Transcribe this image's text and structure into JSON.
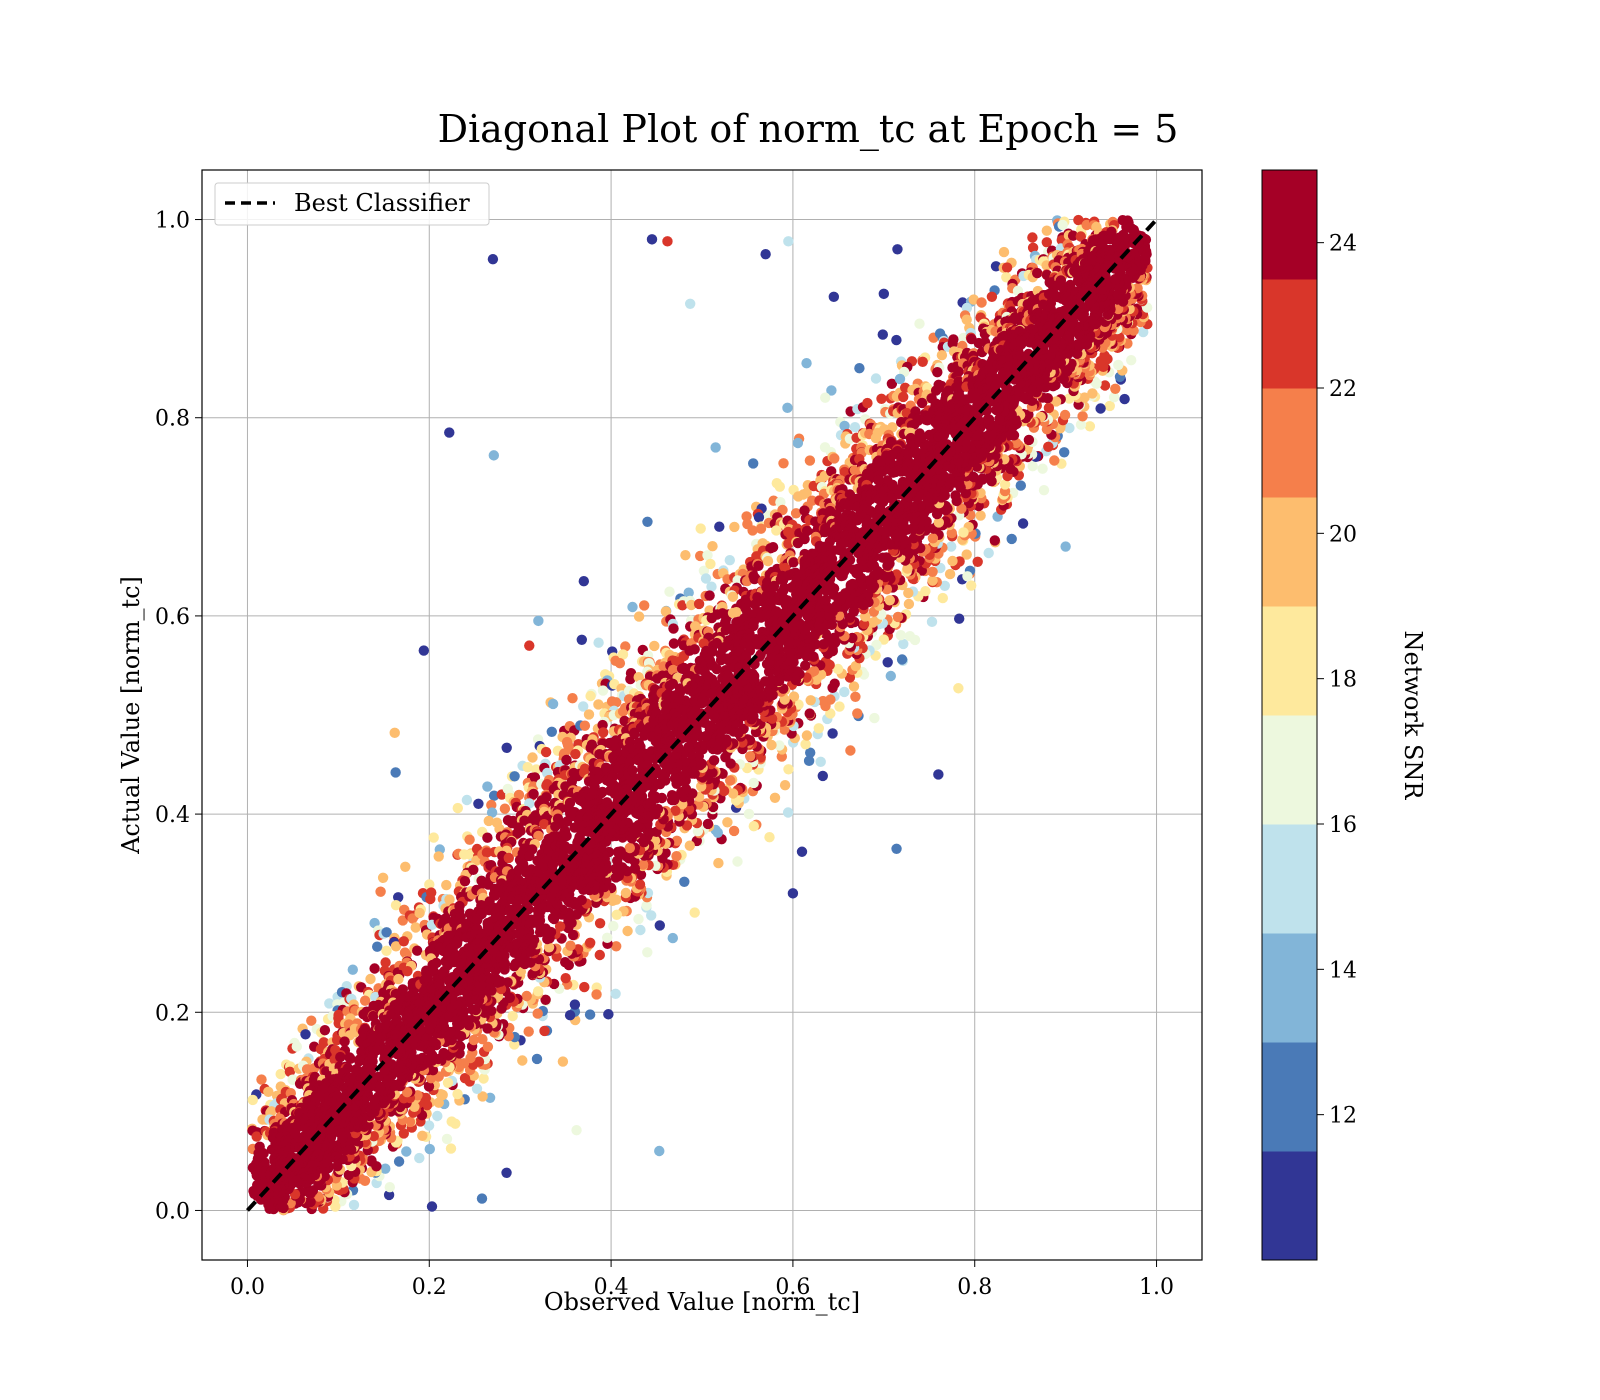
{
  "chart_data": {
    "type": "scatter",
    "title": "Diagonal Plot of norm_tc at Epoch = 5",
    "xlabel": "Observed Value [norm_tc]",
    "ylabel": "Actual Value [norm_tc]",
    "xlim": [
      -0.05,
      1.05
    ],
    "ylim": [
      -0.05,
      1.05
    ],
    "xticks": [
      "0.0",
      "0.2",
      "0.4",
      "0.6",
      "0.8",
      "1.0"
    ],
    "yticks": [
      "0.0",
      "0.2",
      "0.4",
      "0.6",
      "0.8",
      "1.0"
    ],
    "grid": true,
    "legend": {
      "placement": "upper-left",
      "entries": [
        {
          "label": "Best Classifier",
          "style": "dashed",
          "color": "#000000"
        }
      ]
    },
    "reference_line": {
      "name": "Best Classifier",
      "x": [
        0.0,
        1.0
      ],
      "y": [
        0.0,
        1.0
      ],
      "style": "dashed",
      "color": "#000000"
    },
    "colorbar": {
      "label": "Network SNR",
      "range": [
        10,
        25
      ],
      "ticks": [
        "12",
        "14",
        "16",
        "18",
        "20",
        "22",
        "24"
      ],
      "tick_values": [
        12,
        14,
        16,
        18,
        20,
        22,
        24
      ],
      "bands": [
        {
          "from": 10.0,
          "to": 11.5,
          "color": "#313695"
        },
        {
          "from": 11.5,
          "to": 13.0,
          "color": "#4a7ab7"
        },
        {
          "from": 13.0,
          "to": 14.5,
          "color": "#82b5d8"
        },
        {
          "from": 14.5,
          "to": 16.0,
          "color": "#bfe2ec"
        },
        {
          "from": 16.0,
          "to": 17.5,
          "color": "#edf8de"
        },
        {
          "from": 17.5,
          "to": 19.0,
          "color": "#fee99d"
        },
        {
          "from": 19.0,
          "to": 20.5,
          "color": "#fdbd6e"
        },
        {
          "from": 20.5,
          "to": 22.0,
          "color": "#f57f4b"
        },
        {
          "from": 22.0,
          "to": 23.5,
          "color": "#d9362a"
        },
        {
          "from": 23.5,
          "to": 25.0,
          "color": "#a50026"
        }
      ]
    },
    "band_description": "Dense cloud of points along the diagonal y = x from (0,0) to (1,1); half-width approx 0.06; mostly high SNR (dark red) in the core with lower-SNR (blue) points at the edges",
    "outliers": [
      {
        "x": 0.27,
        "y": 0.96,
        "snr": 10.5
      },
      {
        "x": 0.445,
        "y": 0.98,
        "snr": 10.5
      },
      {
        "x": 0.462,
        "y": 0.978,
        "snr": 22.5
      },
      {
        "x": 0.57,
        "y": 0.965,
        "snr": 10.5
      },
      {
        "x": 0.595,
        "y": 0.978,
        "snr": 15.2
      },
      {
        "x": 0.487,
        "y": 0.915,
        "snr": 15.2
      },
      {
        "x": 0.222,
        "y": 0.785,
        "snr": 10.5
      },
      {
        "x": 0.271,
        "y": 0.762,
        "snr": 13.8
      },
      {
        "x": 0.194,
        "y": 0.565,
        "snr": 10.5
      },
      {
        "x": 0.162,
        "y": 0.482,
        "snr": 19.8
      },
      {
        "x": 0.163,
        "y": 0.442,
        "snr": 12.2
      },
      {
        "x": 0.31,
        "y": 0.57,
        "snr": 22.5
      },
      {
        "x": 0.645,
        "y": 0.922,
        "snr": 10.5
      },
      {
        "x": 0.7,
        "y": 0.925,
        "snr": 10.5
      },
      {
        "x": 0.715,
        "y": 0.97,
        "snr": 10.5
      },
      {
        "x": 0.9,
        "y": 0.67,
        "snr": 13.8
      },
      {
        "x": 0.782,
        "y": 0.527,
        "snr": 18.2
      },
      {
        "x": 0.76,
        "y": 0.44,
        "snr": 10.5
      },
      {
        "x": 0.714,
        "y": 0.365,
        "snr": 12.2
      },
      {
        "x": 0.61,
        "y": 0.362,
        "snr": 10.5
      },
      {
        "x": 0.6,
        "y": 0.32,
        "snr": 10.5
      },
      {
        "x": 0.397,
        "y": 0.198,
        "snr": 10.5
      },
      {
        "x": 0.384,
        "y": 0.218,
        "snr": 21.5
      },
      {
        "x": 0.362,
        "y": 0.081,
        "snr": 16.8
      },
      {
        "x": 0.453,
        "y": 0.06,
        "snr": 13.8
      },
      {
        "x": 0.285,
        "y": 0.038,
        "snr": 10.5
      },
      {
        "x": 0.258,
        "y": 0.012,
        "snr": 12.2
      },
      {
        "x": 0.203,
        "y": 0.004,
        "snr": 10.5
      },
      {
        "x": 0.44,
        "y": 0.695,
        "snr": 12.2
      },
      {
        "x": 0.37,
        "y": 0.635,
        "snr": 10.5
      },
      {
        "x": 0.615,
        "y": 0.855,
        "snr": 13.8
      },
      {
        "x": 0.594,
        "y": 0.81,
        "snr": 13.8
      },
      {
        "x": 0.515,
        "y": 0.77,
        "snr": 13.8
      },
      {
        "x": 0.753,
        "y": 0.594,
        "snr": 15.2
      },
      {
        "x": 0.792,
        "y": 0.64,
        "snr": 16.8
      },
      {
        "x": 0.32,
        "y": 0.595,
        "snr": 13.8
      }
    ]
  }
}
